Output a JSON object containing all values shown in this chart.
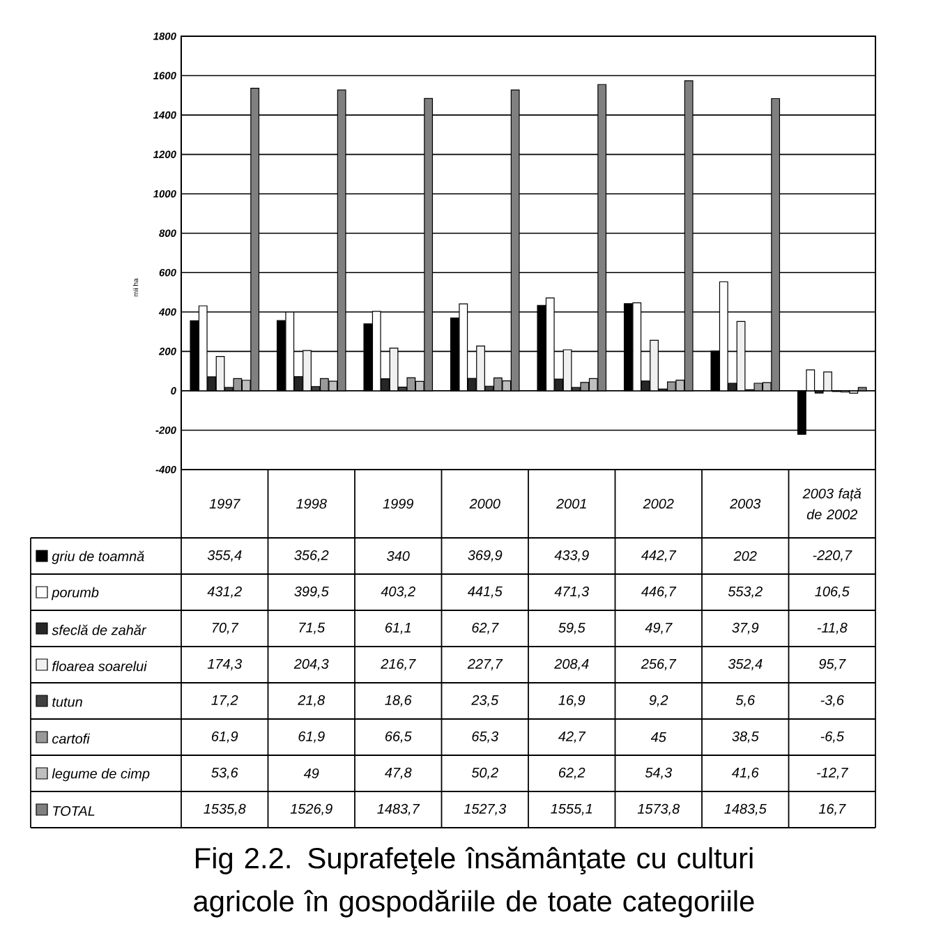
{
  "chart_data": {
    "type": "bar",
    "title": "Fig 2.2. Suprafeţele însămânţate cu culturi agricole în gospodăriile de toate categoriile",
    "ylabel": "mii ha",
    "categories": [
      "1997",
      "1998",
      "1999",
      "2000",
      "2001",
      "2002",
      "2003",
      "2003 față de 2002"
    ],
    "ylim": [
      -400,
      1800
    ],
    "yticks": [
      -400,
      -200,
      0,
      200,
      400,
      600,
      800,
      1000,
      1200,
      1400,
      1600,
      1800
    ],
    "grid": "y",
    "legend": "bottom",
    "series": [
      {
        "name": "griu de toamnă",
        "color": "#000000",
        "values": [
          355.4,
          356.2,
          340,
          369.9,
          433.9,
          442.7,
          202,
          -220.7
        ],
        "value_labels": [
          "355,4",
          "356,2",
          "340",
          "369,9",
          "433,9",
          "442,7",
          "202",
          "-220,7"
        ]
      },
      {
        "name": "porumb",
        "color": "#ffffff",
        "values": [
          431.2,
          399.5,
          403.2,
          441.5,
          471.3,
          446.7,
          553.2,
          106.5
        ],
        "value_labels": [
          "431,2",
          "399,5",
          "403,2",
          "441,5",
          "471,3",
          "446,7",
          "553,2",
          "106,5"
        ]
      },
      {
        "name": "sfeclă de zahăr",
        "color": "#262626",
        "values": [
          70.7,
          71.5,
          61.1,
          62.7,
          59.5,
          49.7,
          37.9,
          -11.8
        ],
        "value_labels": [
          "70,7",
          "71,5",
          "61,1",
          "62,7",
          "59,5",
          "49,7",
          "37,9",
          "-11,8"
        ]
      },
      {
        "name": "floarea soarelui",
        "color": "#f0f0f0",
        "values": [
          174.3,
          204.3,
          216.7,
          227.7,
          208.4,
          256.7,
          352.4,
          95.7
        ],
        "value_labels": [
          "174,3",
          "204,3",
          "216,7",
          "227,7",
          "208,4",
          "256,7",
          "352,4",
          "95,7"
        ]
      },
      {
        "name": "tutun",
        "color": "#404040",
        "values": [
          17.2,
          21.8,
          18.6,
          23.5,
          16.9,
          9.2,
          5.6,
          -3.6
        ],
        "value_labels": [
          "17,2",
          "21,8",
          "18,6",
          "23,5",
          "16,9",
          "9,2",
          "5,6",
          "-3,6"
        ]
      },
      {
        "name": "cartofi",
        "color": "#999999",
        "values": [
          61.9,
          61.9,
          66.5,
          65.3,
          42.7,
          45,
          38.5,
          -6.5
        ],
        "value_labels": [
          "61,9",
          "61,9",
          "66,5",
          "65,3",
          "42,7",
          "45",
          "38,5",
          "-6,5"
        ]
      },
      {
        "name": "legume de cimp",
        "color": "#bfbfbf",
        "values": [
          53.6,
          49,
          47.8,
          50.2,
          62.2,
          54.3,
          41.6,
          -12.7
        ],
        "value_labels": [
          "53,6",
          "49",
          "47,8",
          "50,2",
          "62,2",
          "54,3",
          "41,6",
          "-12,7"
        ]
      },
      {
        "name": "TOTAL",
        "color": "#808080",
        "values": [
          1535.8,
          1526.9,
          1483.7,
          1527.3,
          1555.1,
          1573.8,
          1483.5,
          16.7
        ],
        "value_labels": [
          "1535,8",
          "1526,9",
          "1483,7",
          "1527,3",
          "1555,1",
          "1573,8",
          "1483,5",
          "16,7"
        ]
      }
    ]
  }
}
